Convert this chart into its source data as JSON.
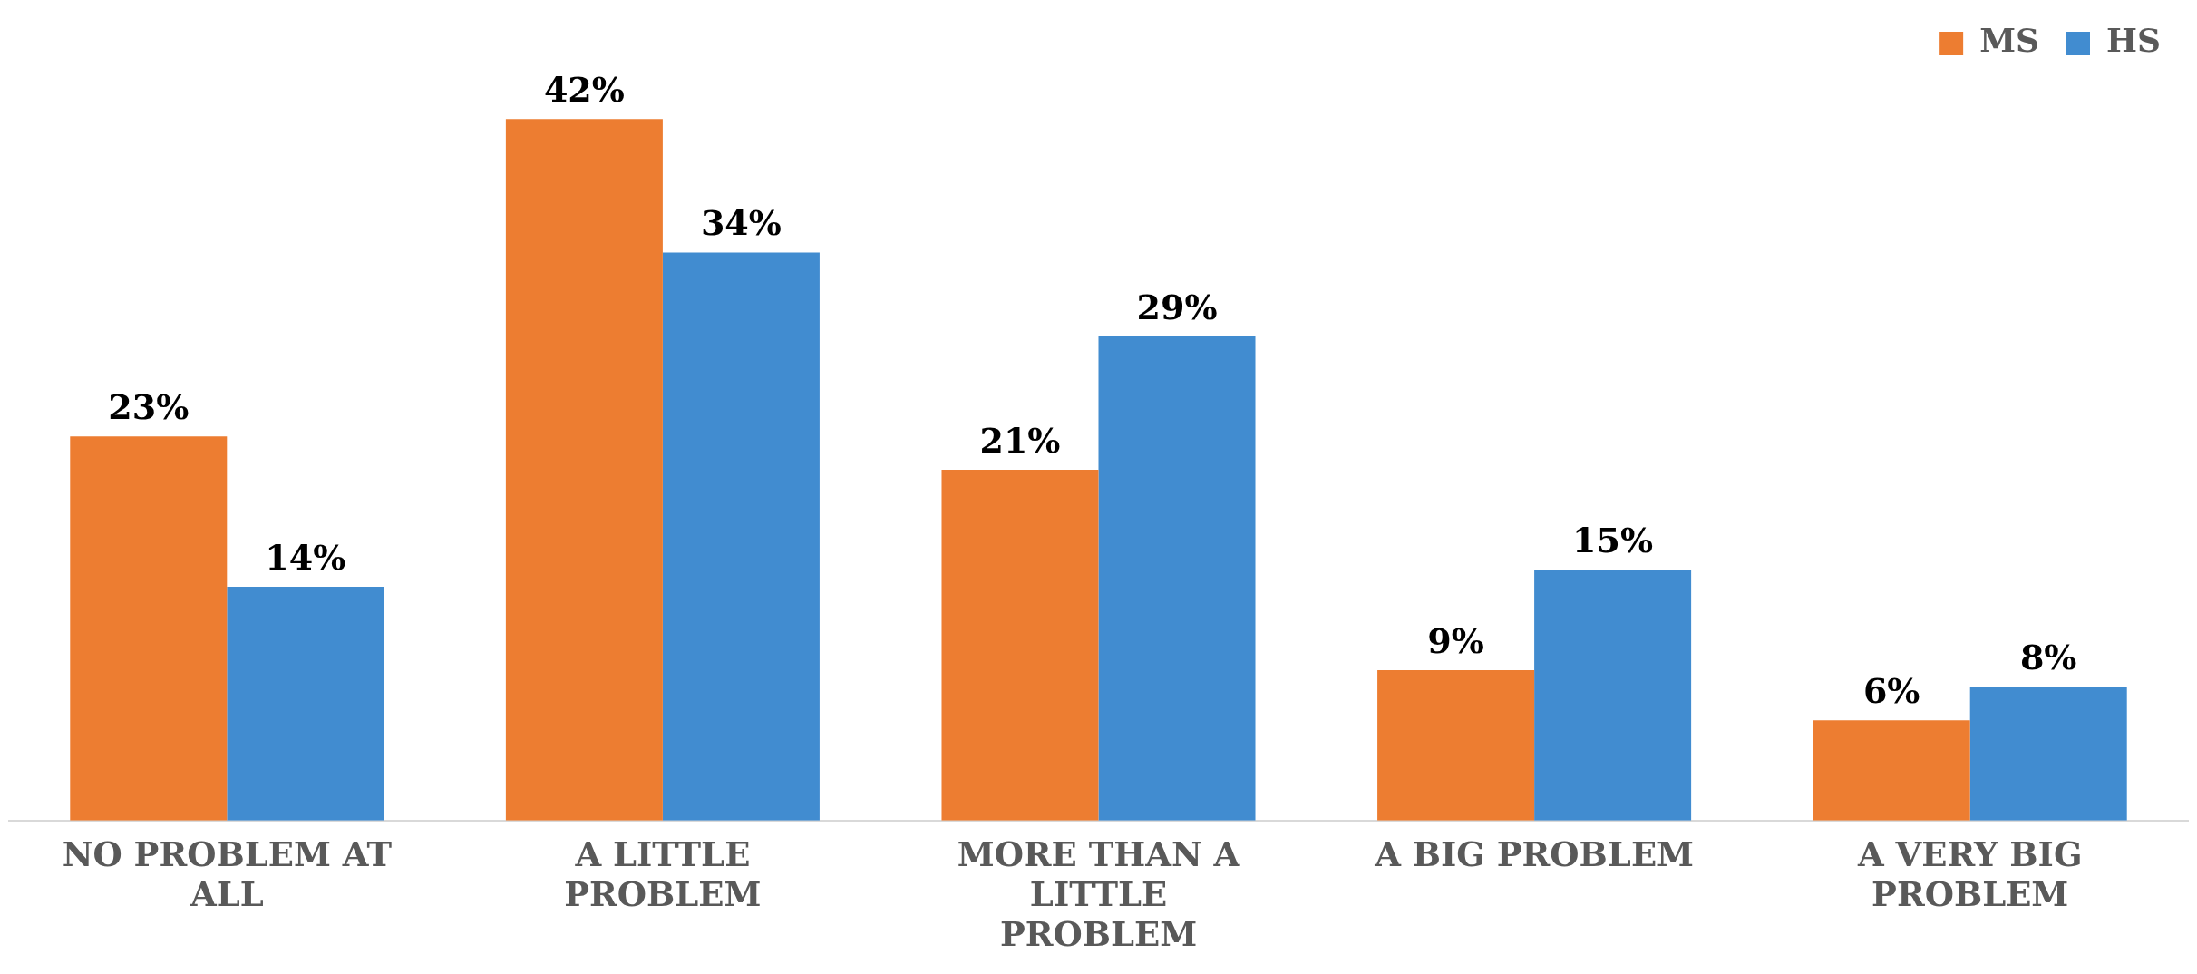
{
  "chart_data": {
    "type": "bar",
    "categories": [
      "NO PROBLEM AT ALL",
      "A LITTLE PROBLEM",
      "MORE THAN A LITTLE PROBLEM",
      "A BIG PROBLEM",
      "A VERY BIG PROBLEM"
    ],
    "series": [
      {
        "name": "MS",
        "color": "#ed7d31",
        "values": [
          23,
          42,
          21,
          9,
          6
        ],
        "value_labels": [
          "23%",
          "42%",
          "21%",
          "9%",
          "6%"
        ]
      },
      {
        "name": "HS",
        "color": "#418cd0",
        "values": [
          14,
          34,
          29,
          15,
          8
        ],
        "value_labels": [
          "14%",
          "34%",
          "29%",
          "15%",
          "8%"
        ]
      }
    ],
    "legend": "top right",
    "grid": false,
    "tick_labels": "x"
  }
}
